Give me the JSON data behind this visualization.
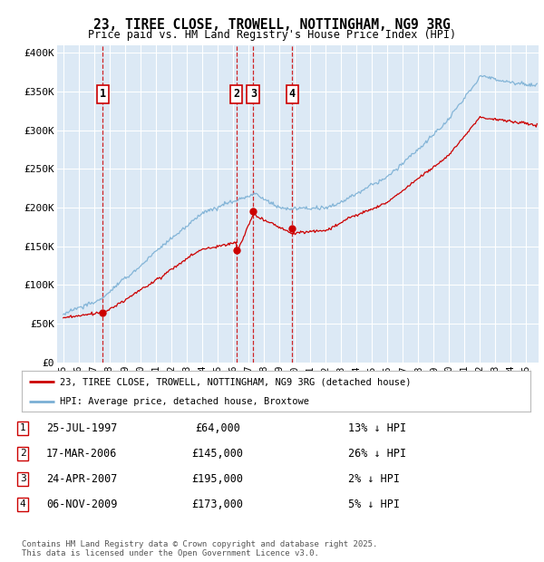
{
  "title": "23, TIREE CLOSE, TROWELL, NOTTINGHAM, NG9 3RG",
  "subtitle": "Price paid vs. HM Land Registry's House Price Index (HPI)",
  "yticks": [
    0,
    50000,
    100000,
    150000,
    200000,
    250000,
    300000,
    350000,
    400000
  ],
  "ytick_labels": [
    "£0",
    "£50K",
    "£100K",
    "£150K",
    "£200K",
    "£250K",
    "£300K",
    "£350K",
    "£400K"
  ],
  "xmin": 1994.6,
  "xmax": 2025.8,
  "ymin": 0,
  "ymax": 410000,
  "bg_color": "#dce9f5",
  "grid_color": "#ffffff",
  "sale_dates": [
    1997.56,
    2006.21,
    2007.31,
    2009.84
  ],
  "sale_prices": [
    64000,
    145000,
    195000,
    173000
  ],
  "sale_labels": [
    "1",
    "2",
    "3",
    "4"
  ],
  "vline_color": "#cc0000",
  "legend_red_label": "23, TIREE CLOSE, TROWELL, NOTTINGHAM, NG9 3RG (detached house)",
  "legend_blue_label": "HPI: Average price, detached house, Broxtowe",
  "table_rows": [
    [
      "1",
      "25-JUL-1997",
      "£64,000",
      "13% ↓ HPI"
    ],
    [
      "2",
      "17-MAR-2006",
      "£145,000",
      "26% ↓ HPI"
    ],
    [
      "3",
      "24-APR-2007",
      "£195,000",
      "2% ↓ HPI"
    ],
    [
      "4",
      "06-NOV-2009",
      "£173,000",
      "5% ↓ HPI"
    ]
  ],
  "footer": "Contains HM Land Registry data © Crown copyright and database right 2025.\nThis data is licensed under the Open Government Licence v3.0.",
  "red_line_color": "#cc0000",
  "blue_line_color": "#7aafd4",
  "fig_bg": "#ffffff"
}
